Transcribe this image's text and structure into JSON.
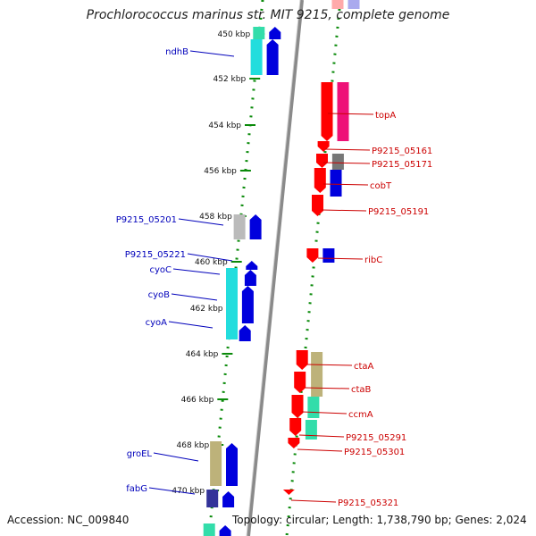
{
  "header": {
    "title": "Prochlorococcus marinus str. MIT 9215, complete genome"
  },
  "footer": {
    "accession": "Accession: NC_009840",
    "summary": "Topology: circular; Length: 1,738,790 bp; Genes: 2,024"
  },
  "ticks": [
    "450 kbp",
    "452 kbp",
    "454 kbp",
    "456 kbp",
    "458 kbp",
    "460 kbp",
    "462 kbp",
    "464 kbp",
    "466 kbp",
    "468 kbp",
    "470 kbp"
  ],
  "colors": {
    "forward_label": "#0000bb",
    "reverse_label": "#cc0000",
    "backbone": "#8a8a8a",
    "dotted_track": "#0a8a0a"
  },
  "genes": [
    {
      "name": "ndhB",
      "strand": "forward"
    },
    {
      "name": "P9215_05201",
      "strand": "forward"
    },
    {
      "name": "P9215_05221",
      "strand": "forward"
    },
    {
      "name": "cyoC",
      "strand": "forward"
    },
    {
      "name": "cyoB",
      "strand": "forward"
    },
    {
      "name": "cyoA",
      "strand": "forward"
    },
    {
      "name": "groEL",
      "strand": "forward"
    },
    {
      "name": "fabG",
      "strand": "forward"
    },
    {
      "name": "topA",
      "strand": "reverse"
    },
    {
      "name": "P9215_05161",
      "strand": "reverse"
    },
    {
      "name": "P9215_05171",
      "strand": "reverse"
    },
    {
      "name": "cobT",
      "strand": "reverse"
    },
    {
      "name": "P9215_05191",
      "strand": "reverse"
    },
    {
      "name": "ribC",
      "strand": "reverse"
    },
    {
      "name": "ctaA",
      "strand": "reverse"
    },
    {
      "name": "ctaB",
      "strand": "reverse"
    },
    {
      "name": "ccmA",
      "strand": "reverse"
    },
    {
      "name": "P9215_05291",
      "strand": "reverse"
    },
    {
      "name": "P9215_05301",
      "strand": "reverse"
    },
    {
      "name": "P9215_05321",
      "strand": "reverse"
    }
  ]
}
